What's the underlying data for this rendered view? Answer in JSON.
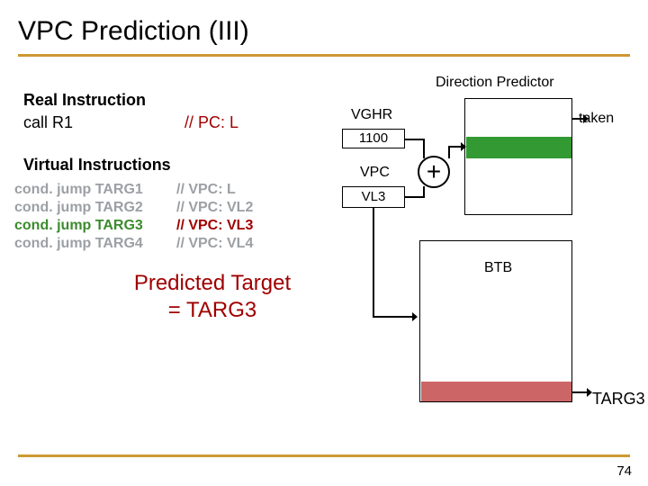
{
  "title": "VPC Prediction (III)",
  "page_number": "74",
  "colors": {
    "accent": "#cc9933",
    "comment_red": "#a00000",
    "active_green": "#3b8b2e",
    "inactive_gray": "#9ca0a4",
    "predictor_fill": "#339933",
    "btb_fill": "#cc6666"
  },
  "left": {
    "real_instruction_heading": "Real Instruction",
    "call_label": "call R1",
    "pc_comment": "// PC: L",
    "virtual_heading": "Virtual Instructions",
    "rows": [
      {
        "instr": "cond. jump TARG1",
        "comment": "// VPC: L",
        "active": false,
        "seen": true
      },
      {
        "instr": "cond. jump TARG2",
        "comment": "// VPC: VL2",
        "active": false,
        "seen": true
      },
      {
        "instr": "cond. jump TARG3",
        "comment": "// VPC: VL3",
        "active": true,
        "seen": true
      },
      {
        "instr": "cond. jump TARG4",
        "comment": "// VPC: VL4",
        "active": false,
        "seen": false
      }
    ],
    "predicted_line1": "Predicted Target",
    "predicted_line2": "= TARG3"
  },
  "diagram": {
    "dp_title": "Direction Predictor",
    "taken": "taken",
    "vghr_label": "VGHR",
    "vghr_value": "1100",
    "vpc_label": "VPC",
    "vpc_value": "VL3",
    "hash": "+",
    "btb_label": "BTB",
    "targ_output": "TARG3"
  }
}
